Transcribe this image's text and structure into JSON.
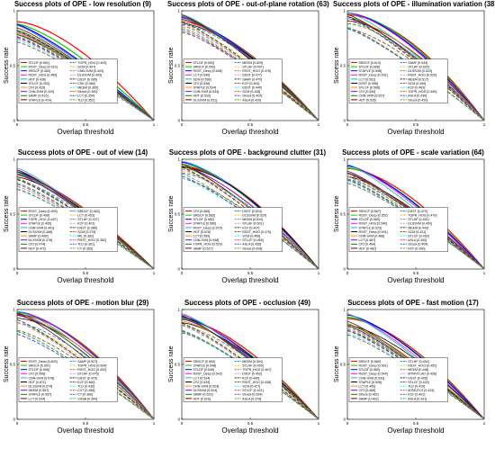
{
  "chart_data": [
    {
      "type": "line",
      "title": "Success plots of OPE - low resolution (9)",
      "xlabel": "Overlap threshold",
      "ylabel": "Success rate",
      "xlim": [
        0,
        1
      ],
      "ylim": [
        0,
        1
      ],
      "legend": {
        "placement": "bottom-left",
        "columns": 2,
        "entries": [
          "STLDF [0.551]",
          "RSST_Deep [0.510]",
          "SRDCF [0.484]",
          "RSST_HOG [0.460]",
          "HDT [0.436]",
          "STLCF [0.433]",
          "CF2 [0.429]",
          "CNN-SVM [0.420]",
          "SAMF [0.415]",
          "STAPLE [0.414]",
          "TGPR_HOG [0.409]",
          "SCM [0.407]",
          "CNN-SVM [0.403]",
          "DLSSVM [0.403]",
          "DSST [0.385]",
          "CSK [0.366]",
          "MEEM [0.365]",
          "Struck [0.360]",
          "LCT [0.354]",
          "TLD [0.352]"
        ]
      },
      "series": [
        {
          "name": "STLDF",
          "y0": 0.92
        },
        {
          "name": "RSST_Deep",
          "y0": 0.88
        }
      ]
    },
    {
      "type": "line",
      "title": "Success plots of OPE - out-of-plane rotation (63)",
      "xlabel": "Overlap threshold",
      "ylabel": "Success rate",
      "xlim": [
        0,
        1
      ],
      "ylim": [
        0,
        1
      ],
      "legend": {
        "placement": "bottom-left",
        "columns": 2,
        "entries": [
          "STLDF [0.553]",
          "SRDCF [0.550]",
          "RSST_Deep [0.548]",
          "LCT [0.540]",
          "SCM [0.538]",
          "CF2 [0.536]",
          "STAPLE [0.534]",
          "CNN-SVM [0.534]",
          "HDT [0.533]",
          "DLSSVM [0.531]",
          "MEEM [0.525]",
          "STLHF [0.497]",
          "RSST_HOG [0.478]",
          "DSST [0.477]",
          "SAMF [0.470]",
          "KCF [0.453]",
          "DSST [0.445]",
          "SCM [0.428]",
          "Struck [0.424]",
          "ASLA [0.420]"
        ]
      }
    },
    {
      "type": "line",
      "title": "Success plots of OPE - illumination variation (38)",
      "xlabel": "Overlap threshold",
      "ylabel": "Success rate",
      "xlim": [
        0,
        1
      ],
      "ylim": [
        0,
        1
      ],
      "legend": {
        "placement": "bottom-left",
        "columns": 2,
        "entries": [
          "SRDCF [0.613]",
          "STLDF [0.608]",
          "STAPLE [0.598]",
          "RSST_Deep [0.591]",
          "LCT [0.561]",
          "DSST [0.558]",
          "STLCF [0.558]",
          "CF2 [0.540]",
          "CNN-SVM [0.537]",
          "HDT [0.535]",
          "SAMF [0.533]",
          "STLHF [0.525]",
          "DLSSVM [0.523]",
          "RSST_HOG [0.520]",
          "MEEM [0.517]",
          "SCM [0.490]",
          "KCF [0.463]",
          "TGPR_HOG [0.450]",
          "ASLA [0.430]",
          "Struck [0.420]"
        ]
      }
    },
    {
      "type": "line",
      "title": "Success plots of OPE - out of view (14)",
      "xlabel": "Overlap threshold",
      "ylabel": "Success rate",
      "xlim": [
        0,
        1
      ],
      "ylim": [
        0,
        1
      ],
      "legend": {
        "placement": "bottom-left",
        "columns": 2,
        "entries": [
          "RSST_Deep [0.505]",
          "STLDF [0.498]",
          "TGPR_HOG [0.497]",
          "STAPLE [0.495]",
          "CNN-SVM [0.491]",
          "DLSSVM [0.488]",
          "SAMF [0.485]",
          "DLSSVM [0.476]",
          "CF2 [0.474]",
          "HDT [0.472]",
          "SRDCF [0.463]",
          "LCT [0.453]",
          "STLHF [0.437]",
          "KCF [0.401]",
          "DSST [0.386]",
          "SCM [0.375]",
          "MIL [0.362]",
          "RSST_HOG [0.362]",
          "TLD [0.361]",
          "CT [0.353]"
        ]
      }
    },
    {
      "type": "line",
      "title": "Success plots of OPE - background clutter (31)",
      "xlabel": "Overlap threshold",
      "ylabel": "Success rate",
      "xlim": [
        0,
        1
      ],
      "ylim": [
        0,
        1
      ],
      "legend": {
        "placement": "bottom-left",
        "columns": 2,
        "entries": [
          "CF2 [0.585]",
          "SRDCF [0.583]",
          "STLDF [0.582]",
          "STAPLE [0.580]",
          "RSST_Deep [0.579]",
          "HDT [0.578]",
          "LCT [0.550]",
          "CNN-SVM [0.548]",
          "TGPR_HOG [0.529]",
          "SAMF [0.527]",
          "DSST [0.524]",
          "DLSSVM [0.520]",
          "MEEM [0.519]",
          "STLHF [0.501]",
          "KCF [0.497]",
          "RSST_HOG [0.475]",
          "SCM [0.456]",
          "STLCF [0.455]",
          "ASLA [0.436]",
          "Struck [0.438]"
        ]
      }
    },
    {
      "type": "line",
      "title": "Success plots of OPE - scale variation (64)",
      "xlabel": "Overlap threshold",
      "ylabel": "Success rate",
      "xlim": [
        0,
        1
      ],
      "ylim": [
        0,
        1
      ],
      "legend": {
        "placement": "bottom-left",
        "columns": 2,
        "entries": [
          "SRDCF [0.567]",
          "RSST_Deep [0.552]",
          "STLDF [0.550]",
          "RSST_HOG [0.540]",
          "STAPLE [0.523]",
          "RSST_Deep [0.491]",
          "CNN-SVM [0.488]",
          "LCT [0.487]",
          "CF2 [0.464]",
          "HDT [0.462]",
          "DSST [0.470]",
          "TGPR_HOG [0.470]",
          "STLHF [0.451]",
          "DLSSVM [0.450]",
          "MEEM [0.443]",
          "SCM [0.431]",
          "STLCF [0.430]",
          "ASLA [0.420]",
          "Struck [0.404]",
          "KCF [0.390]"
        ]
      }
    },
    {
      "type": "line",
      "title": "Success plots of OPE - motion blur (29)",
      "xlabel": "Overlap threshold",
      "ylabel": "Success rate",
      "xlim": [
        0,
        1
      ],
      "ylim": [
        0,
        1
      ],
      "legend": {
        "placement": "bottom-left",
        "columns": 2,
        "entries": [
          "RSST_Deep [0.603]",
          "SRDCF [0.601]",
          "STLDF [0.598]",
          "CF2 [0.596]",
          "CNN-SVM [0.578]",
          "HDT [0.571]",
          "DLSSVM [0.574]",
          "MEEM [0.557]",
          "STAPLE [0.557]",
          "LCT [0.534]",
          "SAMF [0.527]",
          "TGPR_HOG [0.504]",
          "RSST_HOG [0.492]",
          "STLHF [0.476]",
          "DSST [0.476]",
          "KCF [0.460]",
          "TLD [0.435]",
          "CXT [0.386]",
          "CT [0.366]",
          "CASB [0.369]"
        ]
      }
    },
    {
      "type": "line",
      "title": "Success plots of OPE - occlusion (49)",
      "xlabel": "Overlap threshold",
      "ylabel": "Success rate",
      "xlim": [
        0,
        1
      ],
      "ylim": [
        0,
        1
      ],
      "legend": {
        "placement": "bottom-left",
        "columns": 2,
        "entries": [
          "SRDCF [0.560]",
          "STAPLE [0.548]",
          "STLDF [0.545]",
          "RSST_Deep [0.543]",
          "LCT [0.534]",
          "CF2 [0.529]",
          "CNN-SVM [0.524]",
          "DLSSVM [0.524]",
          "SAMF [0.520]",
          "HDT [0.516]",
          "MEEM [0.504]",
          "STLHF [0.495]",
          "TGPR_HOG [0.467]",
          "DSST [0.453]",
          "KCF [0.445]",
          "RSST_HOG [0.438]",
          "SCM [0.427]",
          "STLCF [0.421]",
          "Struck [0.394]",
          "ASLA [0.379]"
        ]
      }
    },
    {
      "type": "line",
      "title": "Success plots of OPE - fast motion (17)",
      "xlabel": "Overlap threshold",
      "ylabel": "Success rate",
      "xlim": [
        0,
        1
      ],
      "ylim": [
        0,
        1
      ],
      "legend": {
        "placement": "bottom-left",
        "columns": 2,
        "entries": [
          "SRDCF [0.569]",
          "RSST_Deep [0.561]",
          "STLDF [0.560]",
          "RSST_Deep [0.544]",
          "CNN-SVM [0.533]",
          "STAPLE [0.508]",
          "LCT [0.490]",
          "CF2 [0.465]",
          "Struck [0.462]",
          "SAMF [0.462]",
          "STLHF [0.454]",
          "RSST_HOG [0.452]",
          "MEEM [0.448]",
          "MTMVTLAD [0.436]",
          "DSST [0.426]",
          "STLCF [0.420]",
          "TLD [0.415]",
          "MTMVTLS [0.415]",
          "KCF [0.401]",
          "ASLA [0.391]"
        ]
      }
    }
  ]
}
